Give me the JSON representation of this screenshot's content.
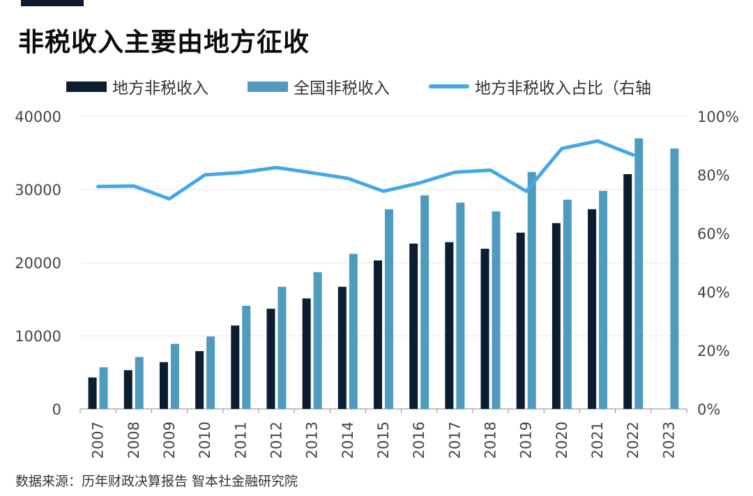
{
  "title": "非税收入主要由地方征收",
  "source": "数据来源：历年财政决算报告 智本社金融研究院",
  "colors": {
    "local_bar": "#0b1d30",
    "national_bar": "#4f9bbd",
    "ratio_line": "#42a8e8",
    "title_bar": "#0b1a2e"
  },
  "chart_data": {
    "type": "bar",
    "categories": [
      "2007",
      "2008",
      "2009",
      "2010",
      "2011",
      "2012",
      "2013",
      "2014",
      "2015",
      "2016",
      "2017",
      "2018",
      "2019",
      "2020",
      "2021",
      "2022",
      "2023"
    ],
    "series": [
      {
        "name": "地方非税收入",
        "type": "bar",
        "values": [
          4300,
          5300,
          6400,
          7900,
          11400,
          13700,
          15100,
          16700,
          20300,
          22600,
          22800,
          21900,
          24100,
          25400,
          27300,
          32100,
          null
        ]
      },
      {
        "name": "全国非税收入",
        "type": "bar",
        "values": [
          5700,
          7100,
          8900,
          9900,
          14100,
          16700,
          18700,
          21200,
          27300,
          29200,
          28200,
          27000,
          32400,
          28600,
          29800,
          37000,
          35600
        ]
      },
      {
        "name": "地方非税收入占比（右轴",
        "type": "line",
        "axis": "right",
        "values": [
          76,
          76.2,
          71.8,
          80,
          80.8,
          82.5,
          80.7,
          78.8,
          74.4,
          77.2,
          80.9,
          81.6,
          74.4,
          89,
          91.6,
          86.8,
          null
        ]
      }
    ],
    "yleft": {
      "ylim": [
        0,
        40000
      ],
      "ticks": [
        "0",
        "10000",
        "20000",
        "30000",
        "40000"
      ]
    },
    "yright": {
      "ylim": [
        0,
        100
      ],
      "ticks": [
        "0%",
        "20%",
        "40%",
        "60%",
        "80%",
        "100%"
      ]
    },
    "grid": true,
    "legend_position": "top"
  }
}
